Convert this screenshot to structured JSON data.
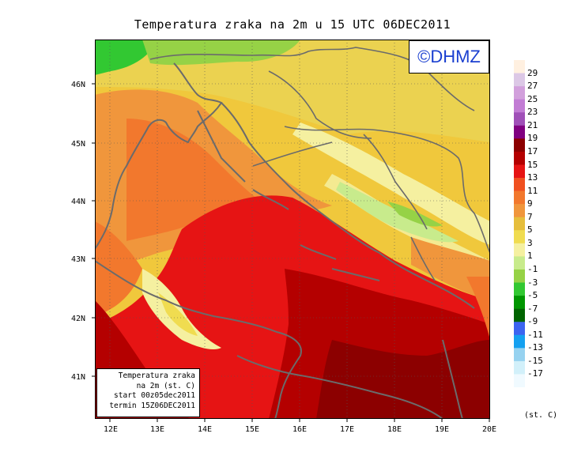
{
  "title": "Temperatura zraka na 2m u 15 UTC 06DEC2011",
  "logo_text": "©DHMZ",
  "info_box": {
    "line1": "Temperatura zraka",
    "line2": "na 2m (st. C)",
    "line3": "start 00z05dec2011",
    "line4": "termin 15Z06DEC2011"
  },
  "x_ticks": [
    "12E",
    "13E",
    "14E",
    "15E",
    "16E",
    "17E",
    "18E",
    "19E",
    "20E"
  ],
  "y_ticks": [
    "46N",
    "45N",
    "44N",
    "43N",
    "42N",
    "41N"
  ],
  "legend": {
    "unit": "(st. C)",
    "levels": [
      "29",
      "27",
      "25",
      "23",
      "21",
      "19",
      "17",
      "15",
      "13",
      "11",
      "9",
      "7",
      "5",
      "3",
      "1",
      "-1",
      "-3",
      "-5",
      "-7",
      "-9",
      "-11",
      "-13",
      "-15",
      "-17"
    ],
    "colors": [
      "#fff0e0",
      "#dcc8e6",
      "#d2a0dc",
      "#c27cd4",
      "#a050b8",
      "#800080",
      "#8c0000",
      "#b40000",
      "#e61414",
      "#f05020",
      "#f2782d",
      "#f0963c",
      "#e6be3c",
      "#f0dc50",
      "#f5f0a0",
      "#c8eb8c",
      "#96d246",
      "#32c832",
      "#009600",
      "#006400",
      "#3c64f0",
      "#14a0f0",
      "#96d2f0",
      "#d2f0fa",
      "#f0faff"
    ]
  },
  "colors": {
    "coast": "#6b6b6b",
    "logo_text": "#1a3fd0"
  }
}
